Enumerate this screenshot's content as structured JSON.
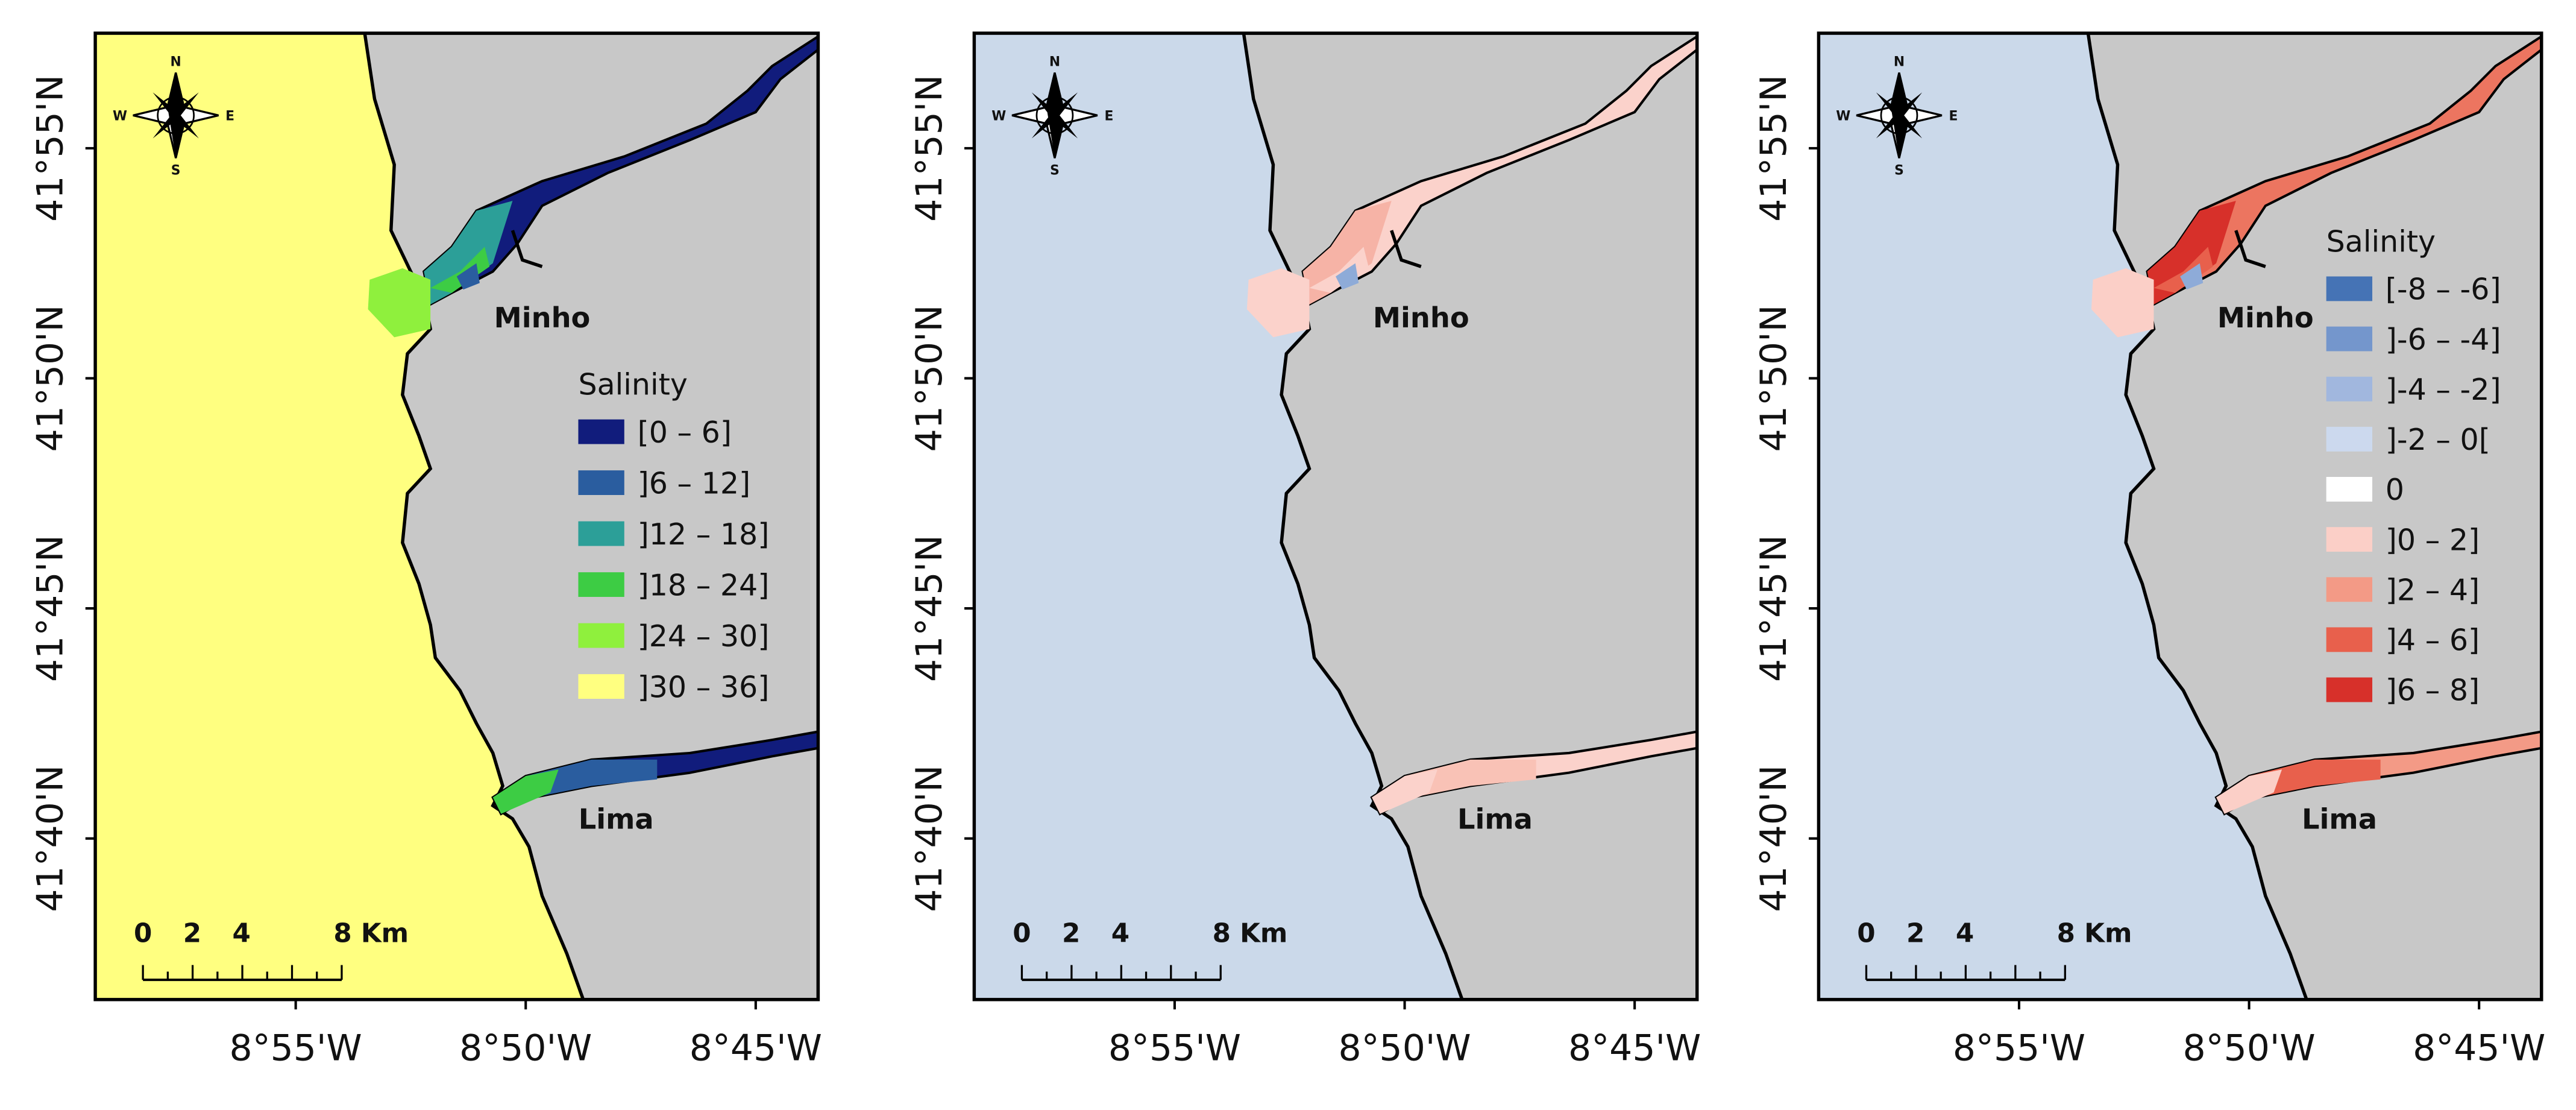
{
  "panels": [
    {
      "latitude_labels": [
        "41°55'N",
        "41°50'N",
        "41°45'N",
        "41°40'N"
      ],
      "longitude_labels": [
        "8°55'W",
        "8°50'W",
        "8°45'W"
      ],
      "places": [
        "Minho",
        "Lima"
      ],
      "scale_labels": [
        "0",
        "2",
        "4",
        "8 Km"
      ],
      "compass": [
        "N",
        "S",
        "W",
        "E"
      ],
      "legend": {
        "title": "Salinity",
        "items": [
          {
            "label": "[0 – 6]",
            "color": "#111c7c"
          },
          {
            "label": "]6 – 12]",
            "color": "#2a5d9f"
          },
          {
            "label": "]12 – 18]",
            "color": "#2c9f98"
          },
          {
            "label": "]18 – 24]",
            "color": "#3dcc44"
          },
          {
            "label": "]24 – 30]",
            "color": "#8ff03d"
          },
          {
            "label": "]30 – 36]",
            "color": "#ffff80"
          }
        ]
      }
    },
    {
      "latitude_labels": [
        "41°55'N",
        "41°50'N",
        "41°45'N",
        "41°40'N"
      ],
      "longitude_labels": [
        "8°55'W",
        "8°50'W",
        "8°45'W"
      ],
      "places": [
        "Minho",
        "Lima"
      ],
      "scale_labels": [
        "0",
        "2",
        "4",
        "8 Km"
      ],
      "compass": [
        "N",
        "S",
        "W",
        "E"
      ]
    },
    {
      "latitude_labels": [
        "41°55'N",
        "41°50'N",
        "41°45'N",
        "41°40'N"
      ],
      "longitude_labels": [
        "8°55'W",
        "8°50'W",
        "8°45'W"
      ],
      "places": [
        "Minho",
        "Lima"
      ],
      "scale_labels": [
        "0",
        "2",
        "4",
        "8 Km"
      ],
      "compass": [
        "N",
        "S",
        "W",
        "E"
      ],
      "legend": {
        "title": "Salinity",
        "items": [
          {
            "label": "[-8 – -6]",
            "color": "#4573b5"
          },
          {
            "label": "]-6 – -4]",
            "color": "#7496cc"
          },
          {
            "label": "]-4 – -2]",
            "color": "#a1b7de"
          },
          {
            "label": "]-2 – 0[",
            "color": "#ccd9ee"
          },
          {
            "label": "0",
            "color": "#ffffff"
          },
          {
            "label": "]0 – 2]",
            "color": "#fbcfc7"
          },
          {
            "label": "]2 – 4]",
            "color": "#f39a86"
          },
          {
            "label": "]4 – 6]",
            "color": "#e8604c"
          },
          {
            "label": "]6 – 8]",
            "color": "#d7302a"
          }
        ]
      }
    }
  ]
}
